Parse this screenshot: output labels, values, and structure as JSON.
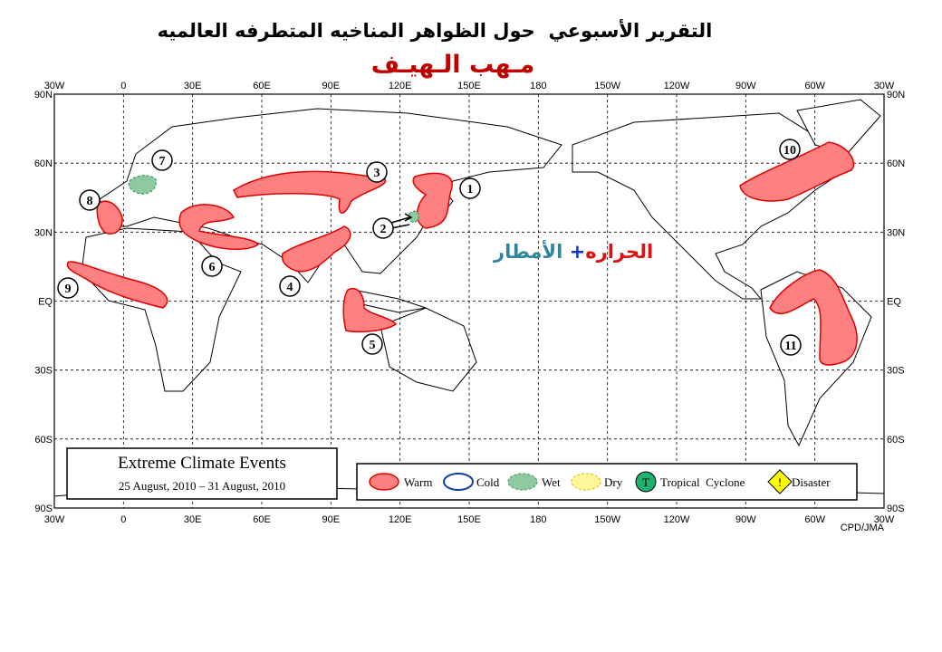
{
  "header": {
    "title": "التقرير الأسبوعي  حول الظواهر المناخيه المتطرفه العالميه",
    "subtitle": "مـهب الـهيـف"
  },
  "overlay": {
    "heat": "الحراره",
    "plus": "+",
    "rain": "الأمطار"
  },
  "map": {
    "lon_labels": [
      "30W",
      "0",
      "30E",
      "60E",
      "90E",
      "120E",
      "150E",
      "180",
      "150W",
      "120W",
      "90W",
      "60W",
      "30W"
    ],
    "lat_labels": [
      "90N",
      "60N",
      "30N",
      "EQ",
      "30S",
      "60S",
      "90S"
    ],
    "credit": "CPD/JMA"
  },
  "info_box": {
    "title": "Extreme Climate Events",
    "period": "25 August, 2010 – 31 August, 2010"
  },
  "legend": {
    "items": [
      {
        "label": "Warm"
      },
      {
        "label": "Cold"
      },
      {
        "label": "Wet"
      },
      {
        "label": "Dry"
      },
      {
        "symbol": "T",
        "label": "Tropical  Cyclone"
      },
      {
        "symbol": "!",
        "label": "Disaster"
      }
    ]
  },
  "events": [
    1,
    2,
    3,
    4,
    5,
    6,
    7,
    8,
    9,
    10,
    11
  ]
}
